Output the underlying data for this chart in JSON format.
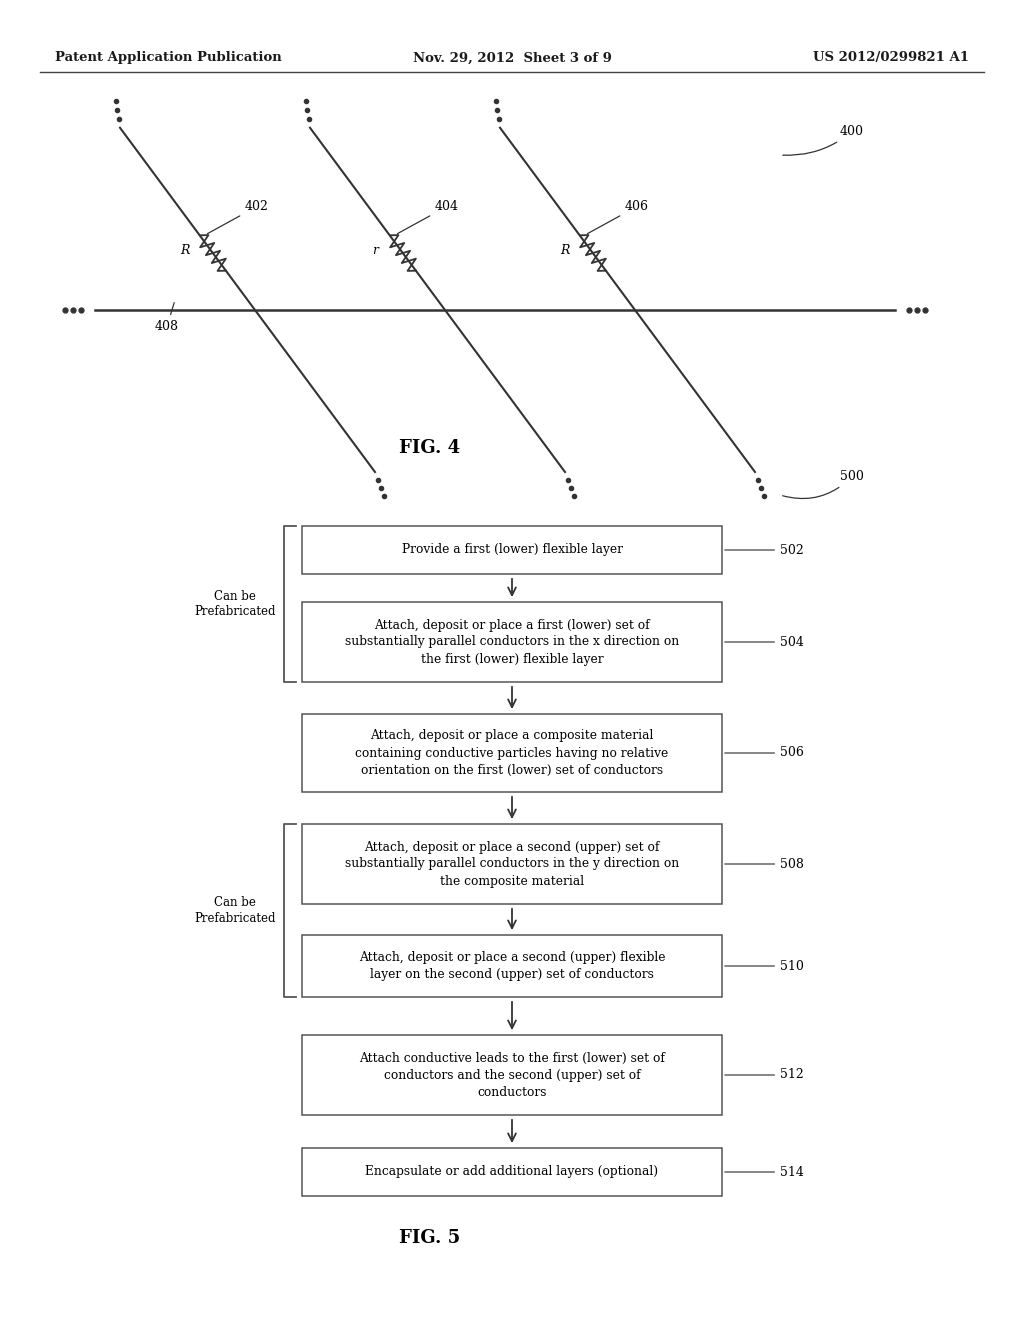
{
  "header_left": "Patent Application Publication",
  "header_mid": "Nov. 29, 2012  Sheet 3 of 9",
  "header_right": "US 2012/0299821 A1",
  "fig4_label": "FIG. 4",
  "fig5_label": "FIG. 5",
  "flowchart_steps": [
    {
      "id": "502",
      "text": "Provide a first (lower) flexible layer"
    },
    {
      "id": "504",
      "text": "Attach, deposit or place a first (lower) set of\nsubstantially parallel conductors in the x direction on\nthe first (lower) flexible layer"
    },
    {
      "id": "506",
      "text": "Attach, deposit or place a composite material\ncontaining conductive particles having no relative\norientation on the first (lower) set of conductors"
    },
    {
      "id": "508",
      "text": "Attach, deposit or place a second (upper) set of\nsubstantially parallel conductors in the y direction on\nthe composite material"
    },
    {
      "id": "510",
      "text": "Attach, deposit or place a second (upper) flexible\nlayer on the second (upper) set of conductors"
    },
    {
      "id": "512",
      "text": "Attach conductive leads to the first (lower) set of\nconductors and the second (upper) set of\nconductors"
    },
    {
      "id": "514",
      "text": "Encapsulate or add additional layers (optional)"
    }
  ],
  "bg_color": "#ffffff",
  "text_color": "#1a1a1a",
  "box_edge_color": "#555555",
  "line_color": "#333333"
}
